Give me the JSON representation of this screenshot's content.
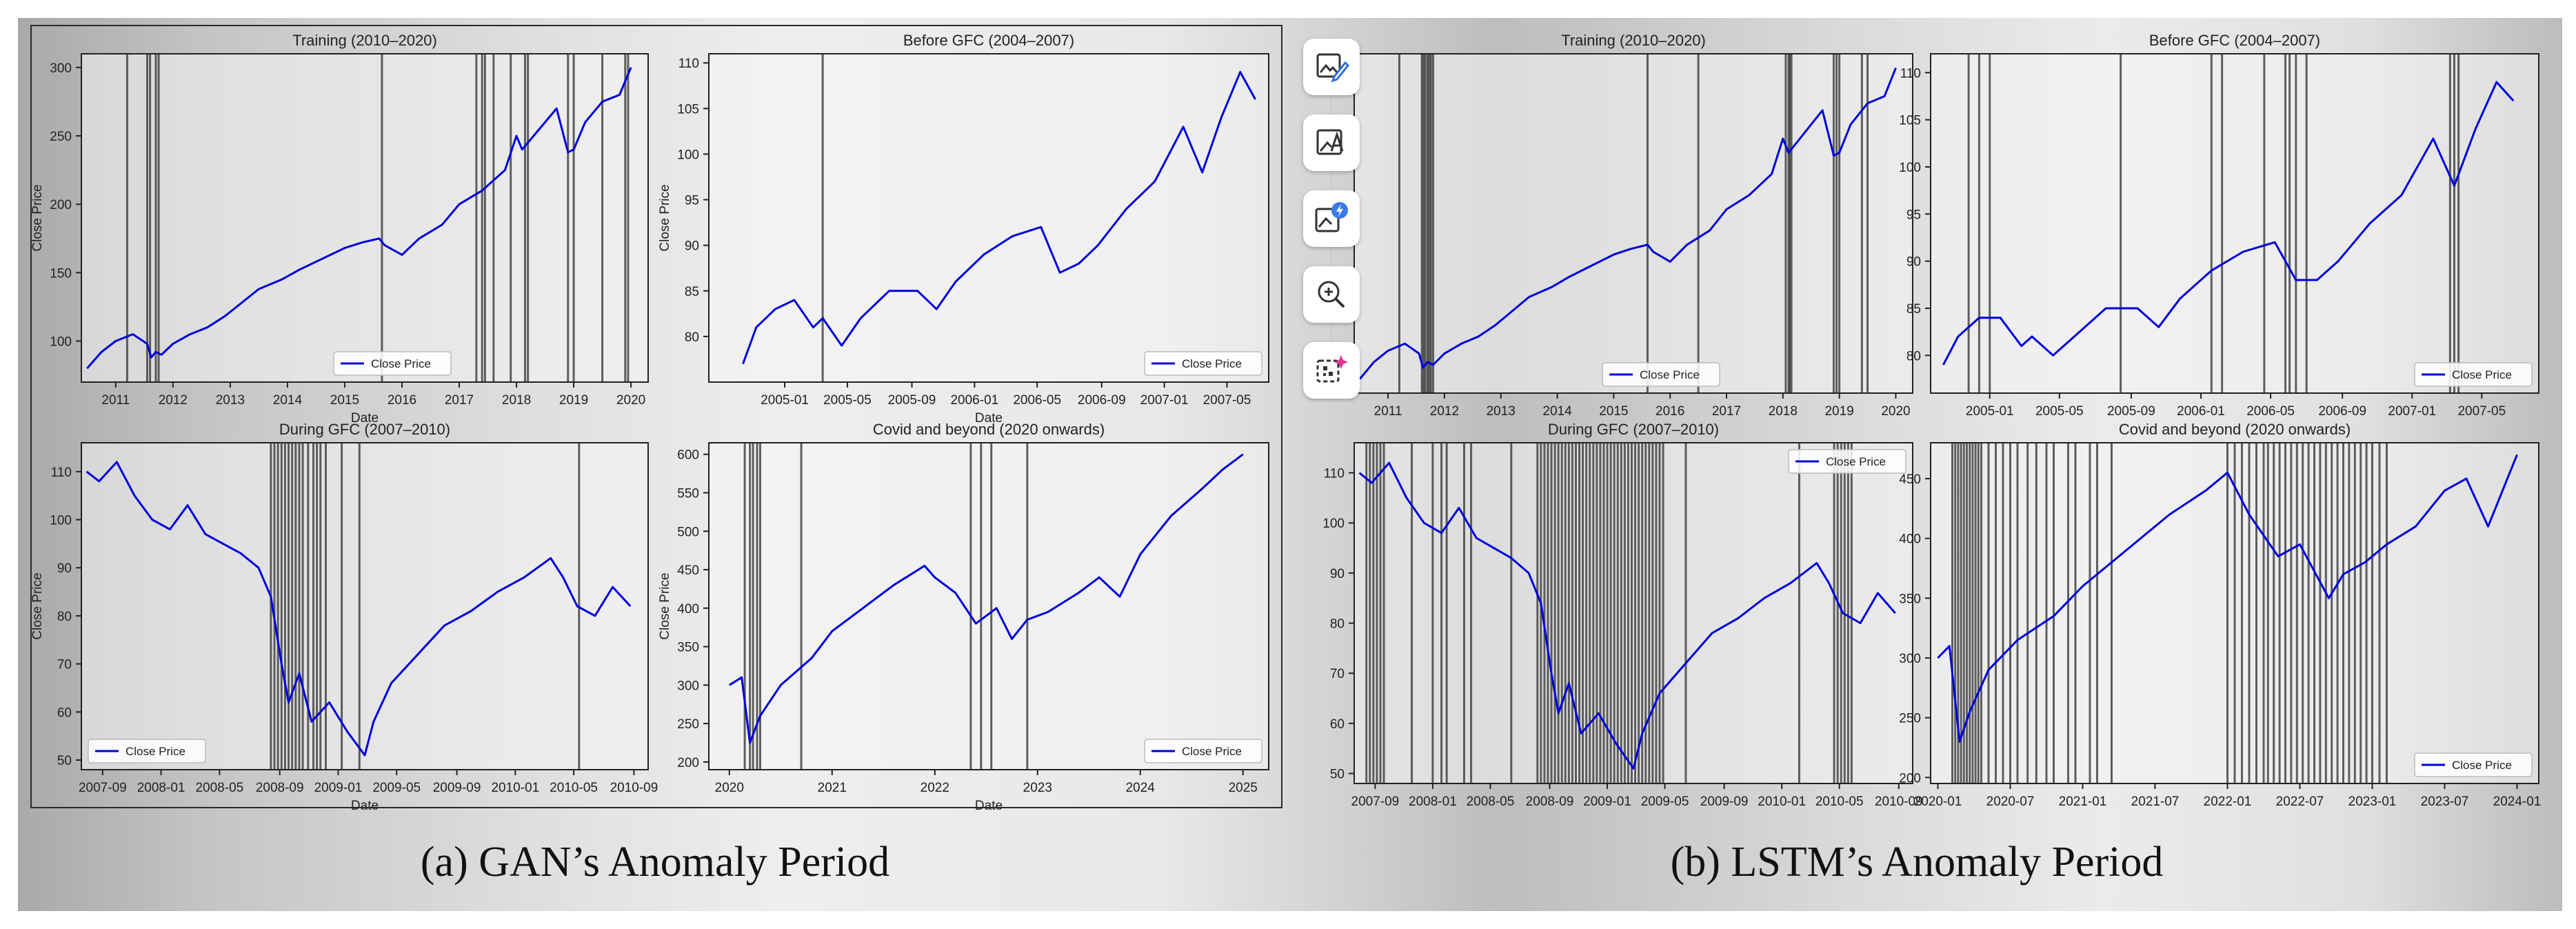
{
  "captions": {
    "gan": "(a) GAN’s Anomaly Period",
    "lstm": "(b) LSTM’s Anomaly Period"
  },
  "toolbar": {
    "items": [
      {
        "name": "edit-image-icon"
      },
      {
        "name": "image-text-icon"
      },
      {
        "name": "enhance-image-icon"
      },
      {
        "name": "zoom-in-icon"
      },
      {
        "name": "qr-sparkle-icon"
      }
    ]
  },
  "colors": {
    "line": "#0000dd",
    "anomaly": "#3a3a3a",
    "plot_bg": "#f6f6f6"
  },
  "chart_data": [
    {
      "id": "gan-training",
      "type": "line",
      "title": "Training (2010–2020)",
      "xlabel": "Date",
      "ylabel": "Close Price",
      "legend": "Close Price",
      "legend_position": "bottom-center",
      "xlim": [
        2010.4,
        2020.3
      ],
      "ylim": [
        70,
        310
      ],
      "xticks": [
        2011,
        2012,
        2013,
        2014,
        2015,
        2016,
        2017,
        2018,
        2019,
        2020
      ],
      "xticklabels": [
        "2011",
        "2012",
        "2013",
        "2014",
        "2015",
        "2016",
        "2017",
        "2018",
        "2019",
        "2020"
      ],
      "yticks": [
        100,
        150,
        200,
        250,
        300
      ],
      "yticklabels": [
        "100",
        "150",
        "200",
        "250",
        "300"
      ],
      "x": [
        2010.5,
        2010.75,
        2011.0,
        2011.3,
        2011.55,
        2011.62,
        2011.7,
        2011.8,
        2012.0,
        2012.3,
        2012.6,
        2012.9,
        2013.2,
        2013.5,
        2013.9,
        2014.2,
        2014.6,
        2015.0,
        2015.3,
        2015.6,
        2015.7,
        2016.0,
        2016.3,
        2016.7,
        2017.0,
        2017.4,
        2017.8,
        2018.0,
        2018.1,
        2018.4,
        2018.7,
        2018.9,
        2019.0,
        2019.2,
        2019.5,
        2019.8,
        2020.0
      ],
      "y": [
        80,
        92,
        100,
        105,
        98,
        88,
        92,
        90,
        98,
        105,
        110,
        118,
        128,
        138,
        145,
        152,
        160,
        168,
        172,
        175,
        170,
        163,
        175,
        185,
        200,
        210,
        225,
        250,
        240,
        255,
        270,
        238,
        240,
        260,
        275,
        280,
        300
      ],
      "anomalies": [
        2011.2,
        2011.55,
        2011.6,
        2011.7,
        2011.75,
        2015.65,
        2017.3,
        2017.4,
        2017.45,
        2017.6,
        2017.9,
        2018.15,
        2018.2,
        2018.9,
        2019.0,
        2019.5,
        2019.9,
        2019.95
      ]
    },
    {
      "id": "gan-before",
      "type": "line",
      "title": "Before GFC (2004–2007)",
      "xlabel": "Date",
      "ylabel": "Close Price",
      "legend": "Close Price",
      "legend_position": "bottom-right",
      "xlim": [
        2004.6,
        2007.55
      ],
      "ylim": [
        75,
        111
      ],
      "xticks": [
        2005.0,
        2005.33,
        2005.67,
        2006.0,
        2006.33,
        2006.67,
        2007.0,
        2007.33
      ],
      "xticklabels": [
        "2005-01",
        "2005-05",
        "2005-09",
        "2006-01",
        "2006-05",
        "2006-09",
        "2007-01",
        "2007-05"
      ],
      "yticks": [
        80,
        85,
        90,
        95,
        100,
        105,
        110
      ],
      "yticklabels": [
        "80",
        "85",
        "90",
        "95",
        "100",
        "105",
        "110"
      ],
      "x": [
        2004.78,
        2004.85,
        2004.95,
        2005.05,
        2005.15,
        2005.2,
        2005.3,
        2005.4,
        2005.55,
        2005.7,
        2005.8,
        2005.9,
        2006.05,
        2006.2,
        2006.35,
        2006.45,
        2006.55,
        2006.65,
        2006.8,
        2006.95,
        2007.05,
        2007.1,
        2007.2,
        2007.3,
        2007.4,
        2007.48
      ],
      "y": [
        77,
        81,
        83,
        84,
        81,
        82,
        79,
        82,
        85,
        85,
        83,
        86,
        89,
        91,
        92,
        87,
        88,
        90,
        94,
        97,
        101,
        103,
        98,
        104,
        109,
        106
      ],
      "anomalies": [
        2005.2
      ]
    },
    {
      "id": "gan-during",
      "type": "line",
      "title": "During GFC (2007–2010)",
      "xlabel": "Date",
      "ylabel": "Close Price",
      "legend": "Close Price",
      "legend_position": "bottom-left",
      "xlim": [
        2007.55,
        2010.75
      ],
      "ylim": [
        48,
        116
      ],
      "xticks": [
        2007.67,
        2008.0,
        2008.33,
        2008.67,
        2009.0,
        2009.33,
        2009.67,
        2010.0,
        2010.33,
        2010.67
      ],
      "xticklabels": [
        "2007-09",
        "2008-01",
        "2008-05",
        "2008-09",
        "2009-01",
        "2009-05",
        "2009-09",
        "2010-01",
        "2010-05",
        "2010-09"
      ],
      "yticks": [
        50,
        60,
        70,
        80,
        90,
        100,
        110
      ],
      "yticklabels": [
        "50",
        "60",
        "70",
        "80",
        "90",
        "100",
        "110"
      ],
      "x": [
        2007.58,
        2007.65,
        2007.75,
        2007.85,
        2007.95,
        2008.05,
        2008.15,
        2008.25,
        2008.35,
        2008.45,
        2008.55,
        2008.62,
        2008.68,
        2008.72,
        2008.78,
        2008.85,
        2008.95,
        2009.05,
        2009.15,
        2009.2,
        2009.3,
        2009.45,
        2009.6,
        2009.75,
        2009.9,
        2010.05,
        2010.2,
        2010.27,
        2010.35,
        2010.45,
        2010.55,
        2010.65
      ],
      "y": [
        110,
        108,
        112,
        105,
        100,
        98,
        103,
        97,
        95,
        93,
        90,
        84,
        70,
        62,
        68,
        58,
        62,
        56,
        51,
        58,
        66,
        72,
        78,
        81,
        85,
        88,
        92,
        88,
        82,
        80,
        86,
        82
      ],
      "anomalies": [
        2008.62,
        2008.64,
        2008.66,
        2008.68,
        2008.7,
        2008.72,
        2008.74,
        2008.76,
        2008.78,
        2008.8,
        2008.83,
        2008.86,
        2008.88,
        2008.9,
        2008.93,
        2009.02,
        2009.12,
        2010.36
      ]
    },
    {
      "id": "gan-covid",
      "type": "line",
      "title": "Covid and beyond (2020 onwards)",
      "xlabel": "Date",
      "ylabel": "Close Price",
      "legend": "Close Price",
      "legend_position": "bottom-right",
      "xlim": [
        2019.8,
        2025.25
      ],
      "ylim": [
        190,
        615
      ],
      "xticks": [
        2020,
        2021,
        2022,
        2023,
        2024,
        2025
      ],
      "xticklabels": [
        "2020",
        "2021",
        "2022",
        "2023",
        "2024",
        "2025"
      ],
      "yticks": [
        200,
        250,
        300,
        350,
        400,
        450,
        500,
        550,
        600
      ],
      "yticklabels": [
        "200",
        "250",
        "300",
        "350",
        "400",
        "450",
        "500",
        "550",
        "600"
      ],
      "x": [
        2020.0,
        2020.12,
        2020.2,
        2020.3,
        2020.5,
        2020.8,
        2021.0,
        2021.3,
        2021.6,
        2021.9,
        2022.0,
        2022.2,
        2022.4,
        2022.6,
        2022.75,
        2022.9,
        2023.1,
        2023.4,
        2023.6,
        2023.8,
        2024.0,
        2024.3,
        2024.6,
        2024.8,
        2025.0
      ],
      "y": [
        300,
        310,
        225,
        260,
        300,
        335,
        370,
        400,
        430,
        455,
        440,
        420,
        380,
        400,
        360,
        385,
        395,
        420,
        440,
        415,
        470,
        520,
        555,
        580,
        600
      ],
      "anomalies": [
        2020.15,
        2020.2,
        2020.23,
        2020.27,
        2020.3,
        2020.7,
        2022.35,
        2022.45,
        2022.55,
        2022.9
      ]
    },
    {
      "id": "lstm-training",
      "type": "line",
      "title": "Training (2010–2020)",
      "xlabel": "",
      "ylabel": "",
      "legend": "Close Price",
      "legend_position": "bottom-center",
      "xlim": [
        2010.4,
        2020.3
      ],
      "ylim": [
        70,
        310
      ],
      "xticks": [
        2011,
        2012,
        2013,
        2014,
        2015,
        2016,
        2017,
        2018,
        2019,
        2020
      ],
      "xticklabels": [
        "2011",
        "2012",
        "2013",
        "2014",
        "2015",
        "2016",
        "2017",
        "2018",
        "2019",
        "2020"
      ],
      "yticks": [],
      "yticklabels": [],
      "x": [
        2010.5,
        2010.75,
        2011.0,
        2011.3,
        2011.55,
        2011.62,
        2011.7,
        2011.8,
        2012.0,
        2012.3,
        2012.6,
        2012.9,
        2013.2,
        2013.5,
        2013.9,
        2014.2,
        2014.6,
        2015.0,
        2015.3,
        2015.6,
        2015.7,
        2016.0,
        2016.3,
        2016.7,
        2017.0,
        2017.4,
        2017.8,
        2018.0,
        2018.1,
        2018.4,
        2018.7,
        2018.9,
        2019.0,
        2019.2,
        2019.5,
        2019.8,
        2020.0
      ],
      "y": [
        80,
        92,
        100,
        105,
        98,
        88,
        92,
        90,
        98,
        105,
        110,
        118,
        128,
        138,
        145,
        152,
        160,
        168,
        172,
        175,
        170,
        163,
        175,
        185,
        200,
        210,
        225,
        250,
        240,
        255,
        270,
        238,
        240,
        260,
        275,
        280,
        300
      ],
      "anomalies": [
        2011.2,
        2011.6,
        2011.63,
        2011.66,
        2011.7,
        2011.73,
        2011.76,
        2011.8,
        2015.6,
        2016.5,
        2018.05,
        2018.1,
        2018.12,
        2018.15,
        2018.9,
        2018.95,
        2019.0,
        2019.4,
        2019.5
      ]
    },
    {
      "id": "lstm-before",
      "type": "line",
      "title": "Before GFC (2004–2007)",
      "xlabel": "",
      "ylabel": "",
      "legend": "Close Price",
      "legend_position": "bottom-right",
      "xlim": [
        2004.72,
        2007.6
      ],
      "ylim": [
        76,
        112
      ],
      "xticks": [
        2005.0,
        2005.33,
        2005.67,
        2006.0,
        2006.33,
        2006.67,
        2007.0,
        2007.33
      ],
      "xticklabels": [
        "2005-01",
        "2005-05",
        "2005-09",
        "2006-01",
        "2006-05",
        "2006-09",
        "2007-01",
        "2007-05"
      ],
      "yticks": [
        80,
        85,
        90,
        95,
        100,
        105,
        110
      ],
      "yticklabels": [
        "80",
        "85",
        "90",
        "95",
        "100",
        "105",
        "110"
      ],
      "x": [
        2004.78,
        2004.85,
        2004.95,
        2005.05,
        2005.15,
        2005.2,
        2005.3,
        2005.4,
        2005.55,
        2005.7,
        2005.8,
        2005.9,
        2006.05,
        2006.2,
        2006.35,
        2006.45,
        2006.55,
        2006.65,
        2006.8,
        2006.95,
        2007.05,
        2007.1,
        2007.2,
        2007.3,
        2007.4,
        2007.48
      ],
      "y": [
        79,
        82,
        84,
        84,
        81,
        82,
        80,
        82,
        85,
        85,
        83,
        86,
        89,
        91,
        92,
        88,
        88,
        90,
        94,
        97,
        101,
        103,
        98,
        104,
        109,
        107
      ],
      "anomalies": [
        2004.9,
        2004.95,
        2005.0,
        2005.62,
        2006.05,
        2006.1,
        2006.3,
        2006.4,
        2006.42,
        2006.45,
        2006.5,
        2007.18,
        2007.2,
        2007.22
      ]
    },
    {
      "id": "lstm-during",
      "type": "line",
      "title": "During GFC (2007–2010)",
      "xlabel": "",
      "ylabel": "",
      "legend": "Close Price",
      "legend_position": "top-right",
      "xlim": [
        2007.55,
        2010.75
      ],
      "ylim": [
        48,
        116
      ],
      "xticks": [
        2007.67,
        2008.0,
        2008.33,
        2008.67,
        2009.0,
        2009.33,
        2009.67,
        2010.0,
        2010.33,
        2010.67
      ],
      "xticklabels": [
        "2007-09",
        "2008-01",
        "2008-05",
        "2008-09",
        "2009-01",
        "2009-05",
        "2009-09",
        "2010-01",
        "2010-05",
        "2010-09"
      ],
      "yticks": [
        50,
        60,
        70,
        80,
        90,
        100,
        110
      ],
      "yticklabels": [
        "50",
        "60",
        "70",
        "80",
        "90",
        "100",
        "110"
      ],
      "x": [
        2007.58,
        2007.65,
        2007.75,
        2007.85,
        2007.95,
        2008.05,
        2008.15,
        2008.25,
        2008.35,
        2008.45,
        2008.55,
        2008.62,
        2008.68,
        2008.72,
        2008.78,
        2008.85,
        2008.95,
        2009.05,
        2009.15,
        2009.2,
        2009.3,
        2009.45,
        2009.6,
        2009.75,
        2009.9,
        2010.05,
        2010.2,
        2010.27,
        2010.35,
        2010.45,
        2010.55,
        2010.65
      ],
      "y": [
        110,
        108,
        112,
        105,
        100,
        98,
        103,
        97,
        95,
        93,
        90,
        84,
        70,
        62,
        68,
        58,
        62,
        56,
        51,
        58,
        66,
        72,
        78,
        81,
        85,
        88,
        92,
        88,
        82,
        80,
        86,
        82
      ],
      "anomalies": [
        2007.62,
        2007.64,
        2007.66,
        2007.68,
        2007.7,
        2007.72,
        2007.88,
        2008.0,
        2008.05,
        2008.08,
        2008.18,
        2008.22,
        2008.45,
        2008.6,
        2008.62,
        2008.64,
        2008.66,
        2008.68,
        2008.7,
        2008.72,
        2008.74,
        2008.76,
        2008.78,
        2008.8,
        2008.82,
        2008.84,
        2008.86,
        2008.88,
        2008.9,
        2008.92,
        2008.94,
        2008.96,
        2008.98,
        2009.0,
        2009.02,
        2009.04,
        2009.06,
        2009.08,
        2009.1,
        2009.12,
        2009.14,
        2009.16,
        2009.18,
        2009.2,
        2009.22,
        2009.24,
        2009.26,
        2009.28,
        2009.3,
        2009.32,
        2009.45,
        2010.1,
        2010.3,
        2010.32,
        2010.34,
        2010.36,
        2010.38,
        2010.4
      ]
    },
    {
      "id": "lstm-covid",
      "type": "line",
      "title": "Covid and beyond (2020 onwards)",
      "xlabel": "",
      "ylabel": "",
      "legend": "Close Price",
      "legend_position": "bottom-right",
      "xlim": [
        2019.95,
        2024.15
      ],
      "ylim": [
        195,
        480
      ],
      "xticks": [
        2020.0,
        2020.5,
        2021.0,
        2021.5,
        2022.0,
        2022.5,
        2023.0,
        2023.5,
        2024.0
      ],
      "xticklabels": [
        "2020-01",
        "2020-07",
        "2021-01",
        "2021-07",
        "2022-01",
        "2022-07",
        "2023-01",
        "2023-07",
        "2024-01"
      ],
      "yticks": [
        200,
        250,
        300,
        350,
        400,
        450
      ],
      "yticklabels": [
        "200",
        "250",
        "300",
        "350",
        "400",
        "450"
      ],
      "x": [
        2020.0,
        2020.08,
        2020.15,
        2020.22,
        2020.35,
        2020.55,
        2020.8,
        2021.0,
        2021.3,
        2021.6,
        2021.85,
        2022.0,
        2022.15,
        2022.35,
        2022.5,
        2022.7,
        2022.8,
        2022.95,
        2023.1,
        2023.3,
        2023.5,
        2023.65,
        2023.8,
        2023.9,
        2024.0
      ],
      "y": [
        300,
        310,
        230,
        255,
        290,
        315,
        335,
        360,
        390,
        420,
        440,
        455,
        420,
        385,
        395,
        350,
        370,
        380,
        395,
        410,
        440,
        450,
        410,
        440,
        470
      ],
      "anomalies": [
        2020.1,
        2020.12,
        2020.14,
        2020.16,
        2020.18,
        2020.2,
        2020.22,
        2020.24,
        2020.26,
        2020.28,
        2020.3,
        2020.35,
        2020.4,
        2020.45,
        2020.5,
        2020.55,
        2020.62,
        2020.68,
        2020.75,
        2020.8,
        2020.9,
        2020.95,
        2021.05,
        2021.1,
        2021.2,
        2022.0,
        2022.05,
        2022.1,
        2022.15,
        2022.2,
        2022.25,
        2022.28,
        2022.32,
        2022.36,
        2022.4,
        2022.44,
        2022.48,
        2022.52,
        2022.56,
        2022.6,
        2022.64,
        2022.68,
        2022.72,
        2022.76,
        2022.8,
        2022.84,
        2022.88,
        2022.92,
        2022.96,
        2023.0,
        2023.05,
        2023.1
      ]
    }
  ]
}
